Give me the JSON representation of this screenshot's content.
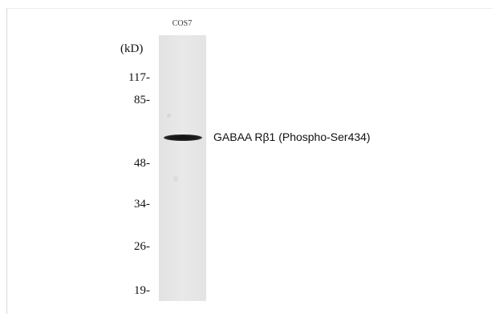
{
  "lane_label": "COS7",
  "unit_label": "(kD)",
  "markers": [
    "117-",
    "85-",
    "48-",
    "34-",
    "26-",
    "19-"
  ],
  "band_label": "GABAA Rβ1 (Phospho-Ser434)"
}
